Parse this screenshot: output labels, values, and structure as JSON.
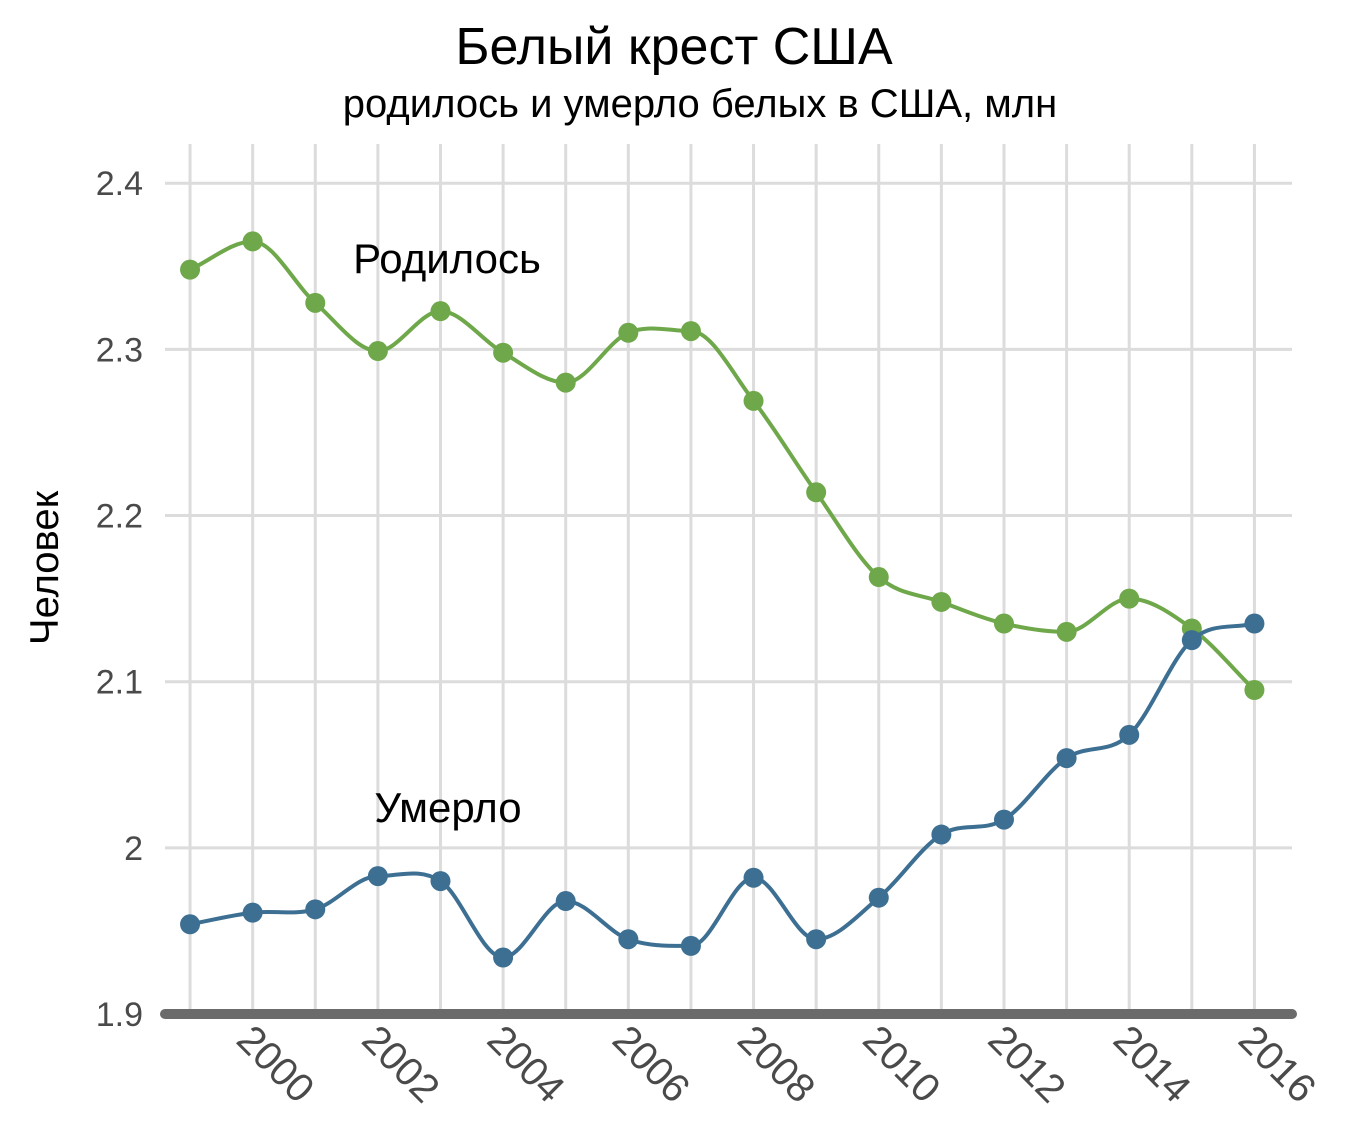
{
  "chart_data": {
    "type": "line",
    "title": "Белый крест США",
    "subtitle": "родилось и умерло белых в США, млн",
    "ylabel": "Человек",
    "xlabel": "",
    "x": [
      1999,
      2000,
      2001,
      2002,
      2003,
      2004,
      2005,
      2006,
      2007,
      2008,
      2009,
      2010,
      2011,
      2012,
      2013,
      2014,
      2015,
      2016
    ],
    "x_ticks": [
      "2000",
      "2002",
      "2004",
      "2006",
      "2008",
      "2010",
      "2012",
      "2014",
      "2016"
    ],
    "y_ticks": [
      "1.9",
      "2",
      "2.1",
      "2.2",
      "2.3",
      "2.4"
    ],
    "ylim": [
      1.9,
      2.42
    ],
    "xlim": [
      1998.6,
      2016.6
    ],
    "grid": true,
    "series": [
      {
        "name": "Родилось",
        "color": "#6fa84a",
        "values": [
          2.348,
          2.365,
          2.328,
          2.299,
          2.323,
          2.298,
          2.28,
          2.31,
          2.311,
          2.269,
          2.214,
          2.163,
          2.148,
          2.135,
          2.13,
          2.15,
          2.132,
          2.095
        ]
      },
      {
        "name": "Умерло",
        "color": "#3d6f93",
        "values": [
          1.954,
          1.961,
          1.963,
          1.983,
          1.98,
          1.934,
          1.968,
          1.945,
          1.941,
          1.982,
          1.945,
          1.97,
          2.008,
          2.017,
          2.054,
          2.068,
          2.125,
          2.135
        ]
      }
    ]
  }
}
